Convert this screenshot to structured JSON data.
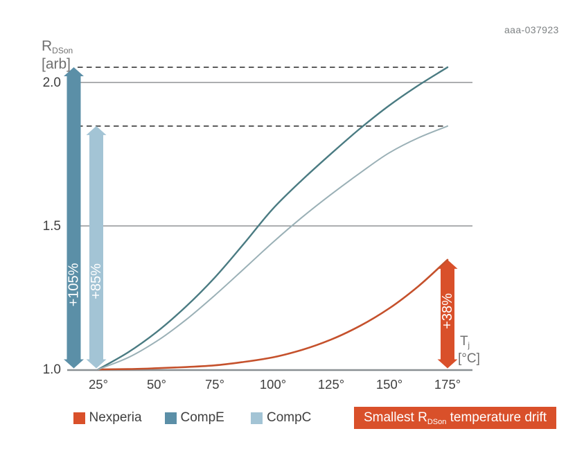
{
  "figure_code": "aaa-037923",
  "colors": {
    "nexperia": "#D9502A",
    "nexperia_curve": "#C5512C",
    "compe": "#5B8FA7",
    "compe_curve": "#4A7B82",
    "compc": "#A3C4D5",
    "compc_curve": "#9AB0B6",
    "grid_line": "#7A7E80",
    "axis_line": "#8A9093",
    "dashed_line": "#525252",
    "tick_text": "#3F3F3F",
    "axis_label_text": "#707070",
    "figure_code_text": "#7E8284",
    "arrow_label_text": "#FFFFFF",
    "banner_bg": "#D9502A",
    "banner_text": "#FFFFFF"
  },
  "y_axis": {
    "label_symbol": "R",
    "label_subscript": "DSon",
    "label_unit": "[arb]",
    "ticks": [
      {
        "value": 2.0,
        "label": "2.0"
      },
      {
        "value": 1.5,
        "label": "1.5"
      },
      {
        "value": 1.0,
        "label": "1.0"
      }
    ]
  },
  "x_axis": {
    "label_symbol": "T",
    "label_subscript": "j",
    "label_unit": "[°C]",
    "ticks": [
      {
        "value": 25,
        "label": "25°"
      },
      {
        "value": 50,
        "label": "50°"
      },
      {
        "value": 75,
        "label": "75°"
      },
      {
        "value": 100,
        "label": "100°"
      },
      {
        "value": 125,
        "label": "125°"
      },
      {
        "value": 150,
        "label": "150°"
      },
      {
        "value": 175,
        "label": "175°"
      }
    ]
  },
  "chart_data": {
    "type": "line",
    "title": "",
    "xlabel": "Tj [°C]",
    "ylabel": "RDSon [arb]",
    "xlim": [
      25,
      175
    ],
    "ylim": [
      1.0,
      2.0
    ],
    "grid": "horizontal solid lines at y = 1.5 and y = 2.0",
    "legend_position": "bottom",
    "x": [
      25,
      37.5,
      50,
      62.5,
      75,
      87.5,
      100,
      112.5,
      125,
      137.5,
      150,
      162.5,
      175
    ],
    "series": [
      {
        "name": "Nexperia",
        "color_key": "nexperia_curve",
        "width": 2.6,
        "values": [
          1.0,
          1.001,
          1.004,
          1.008,
          1.014,
          1.026,
          1.042,
          1.068,
          1.104,
          1.152,
          1.213,
          1.29,
          1.382
        ]
      },
      {
        "name": "CompE",
        "color_key": "compe_curve",
        "width": 2.4,
        "values": [
          1.0,
          1.058,
          1.13,
          1.218,
          1.32,
          1.438,
          1.56,
          1.66,
          1.752,
          1.84,
          1.92,
          1.99,
          2.053
        ]
      },
      {
        "name": "CompC",
        "color_key": "compc_curve",
        "width": 2.0,
        "values": [
          1.0,
          1.04,
          1.098,
          1.172,
          1.258,
          1.35,
          1.443,
          1.53,
          1.61,
          1.685,
          1.755,
          1.807,
          1.848
        ]
      }
    ],
    "dashed_reference_lines": [
      {
        "y": 2.053,
        "meaning": "CompE end value"
      },
      {
        "y": 1.848,
        "meaning": "CompC end value"
      }
    ],
    "drift_arrows": [
      {
        "label": "+105%",
        "series": "CompE",
        "color_key": "compe",
        "from": 1.0,
        "to": 2.053
      },
      {
        "label": "+85%",
        "series": "CompC",
        "color_key": "compc",
        "from": 1.0,
        "to": 1.848
      },
      {
        "label": "+38%",
        "series": "Nexperia",
        "color_key": "nexperia",
        "from": 1.0,
        "to": 1.382
      }
    ]
  },
  "legend": {
    "items": [
      {
        "label": "Nexperia",
        "color_key": "nexperia"
      },
      {
        "label": "CompE",
        "color_key": "compe"
      },
      {
        "label": "CompC",
        "color_key": "compc"
      }
    ]
  },
  "banner": {
    "prefix": "Smallest R",
    "subscript": "DSon",
    "suffix": " temperature drift"
  }
}
